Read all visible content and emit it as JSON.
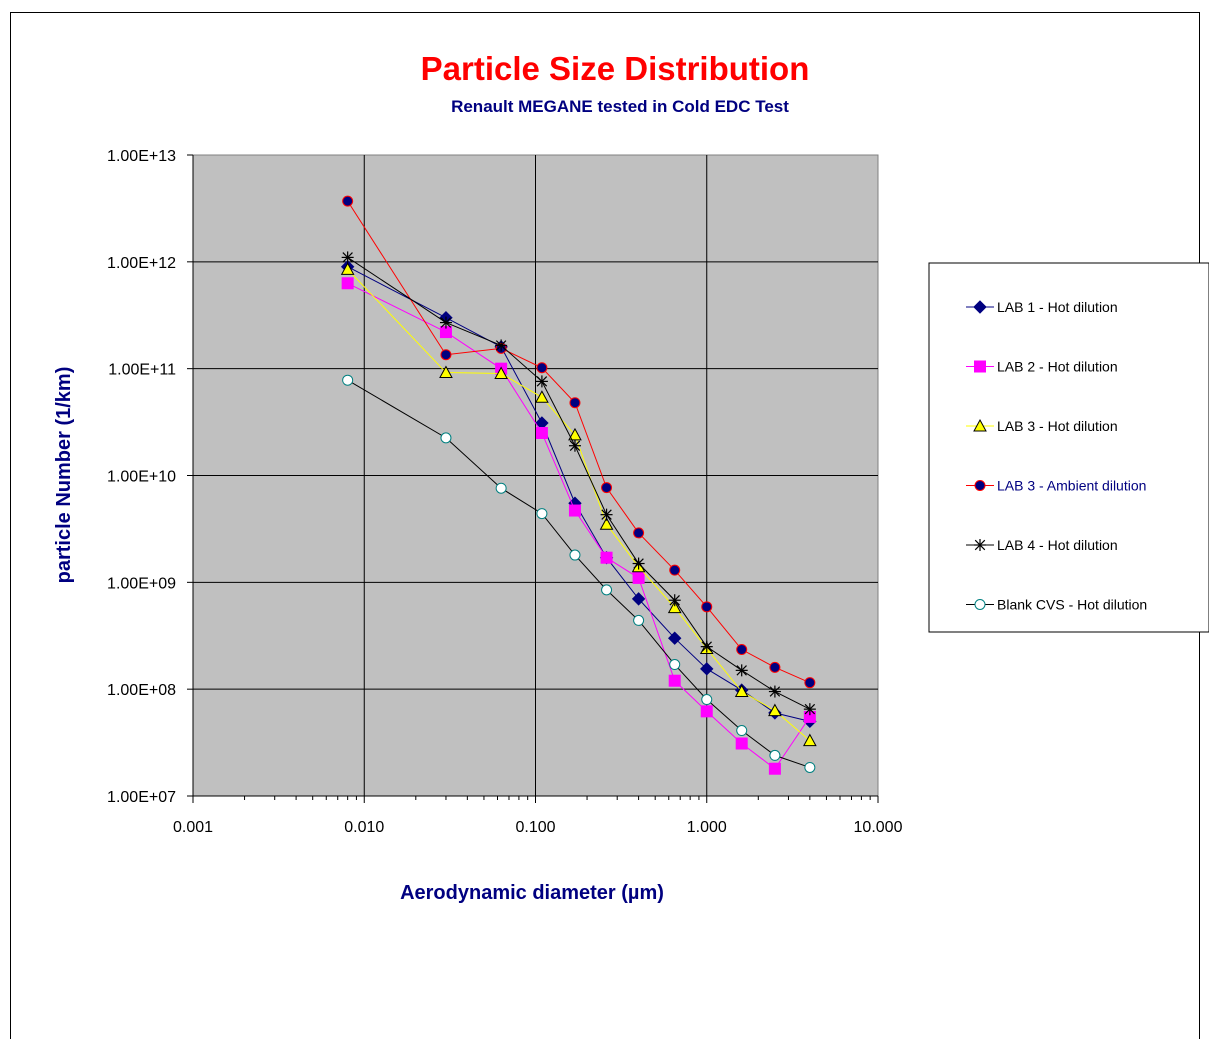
{
  "chart_data": {
    "type": "line",
    "title": "Particle Size Distribution",
    "subtitle": "Renault MEGANE tested in Cold EDC Test",
    "xlabel": "Aerodynamic diameter (µm)",
    "ylabel": "particle Number (1/km)",
    "xscale": "log",
    "yscale": "log",
    "xlim": [
      0.001,
      10
    ],
    "ylim": [
      10000000.0,
      10000000000000.0
    ],
    "x_tick_labels": [
      "0.001",
      "0.010",
      "0.100",
      "1.000",
      "10.000"
    ],
    "y_tick_labels": [
      "1.00E+07",
      "1.00E+08",
      "1.00E+09",
      "1.00E+10",
      "1.00E+11",
      "1.00E+12",
      "1.00E+13"
    ],
    "grid": true,
    "plot_background": "#c0c0c0",
    "legend_position": "right",
    "x": [
      0.008,
      0.03,
      0.063,
      0.109,
      0.17,
      0.26,
      0.4,
      0.65,
      1.0,
      1.6,
      2.5,
      4.0
    ],
    "series": [
      {
        "name": "LAB 1 - Hot dilution",
        "color": "#000080",
        "marker": "diamond",
        "marker_fill": "#000080",
        "values": [
          900000000000.0,
          300000000000.0,
          160000000000.0,
          31000000000.0,
          5500000000.0,
          1700000000.0,
          700000000.0,
          300000000.0,
          155000000.0,
          98000000.0,
          60000000.0,
          50000000.0
        ]
      },
      {
        "name": "LAB 2 - Hot dilution",
        "color": "#ff00ff",
        "marker": "square",
        "marker_fill": "#ff00ff",
        "values": [
          630000000000.0,
          220000000000.0,
          100000000000.0,
          25000000000.0,
          4700000000.0,
          1700000000.0,
          1100000000.0,
          120000000.0,
          62000000.0,
          31000000.0,
          18000000.0,
          55000000.0
        ]
      },
      {
        "name": "LAB 3 - Hot dilution",
        "color": "#ffff00",
        "marker": "triangle",
        "marker_fill": "#ffff00",
        "values": [
          850000000000.0,
          92000000000.0,
          90000000000.0,
          54000000000.0,
          24000000000.0,
          3500000000.0,
          1400000000.0,
          580000000.0,
          240000000.0,
          95000000.0,
          63000000.0,
          33000000.0
        ]
      },
      {
        "name": "LAB 3 - Ambient dilution",
        "color": "#ff0000",
        "marker": "circle",
        "marker_fill": "#000080",
        "values": [
          3700000000000.0,
          135000000000.0,
          155000000000.0,
          102000000000.0,
          48000000000.0,
          7700000000.0,
          2900000000.0,
          1300000000.0,
          590000000.0,
          235000000.0,
          160000000.0,
          115000000.0
        ]
      },
      {
        "name": "LAB 4 - Hot dilution",
        "color": "#000000",
        "marker": "star",
        "marker_fill": "none",
        "values": [
          1100000000000.0,
          270000000000.0,
          165000000000.0,
          76000000000.0,
          19000000000.0,
          4300000000.0,
          1500000000.0,
          680000000.0,
          250000000.0,
          150000000.0,
          95000000.0,
          65000000.0
        ]
      },
      {
        "name": "Blank CVS - Hot dilution",
        "color": "#000000",
        "marker": "circle",
        "marker_fill": "#ffffff",
        "marker_stroke": "#008080",
        "values": [
          78000000000.0,
          22500000000.0,
          7600000000.0,
          4400000000.0,
          1800000000.0,
          850000000.0,
          440000000.0,
          170000000.0,
          80000000.0,
          41000000.0,
          24000000.0,
          18500000.0
        ]
      }
    ]
  }
}
